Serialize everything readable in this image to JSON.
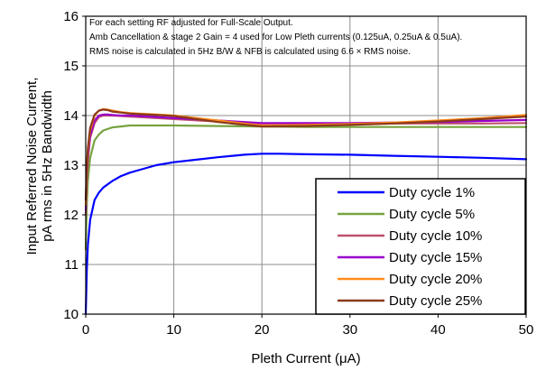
{
  "chart_data": {
    "type": "line",
    "xlabel": "Pleth Current (μA)",
    "ylabel": [
      "Input Referred Noise Current,",
      "pA rms in 5Hz Bandwidth"
    ],
    "xlim": [
      0,
      50
    ],
    "ylim": [
      10,
      16
    ],
    "xticks": [
      "0",
      "10",
      "20",
      "30",
      "40",
      "50"
    ],
    "yticks": [
      "10",
      "11",
      "12",
      "13",
      "14",
      "15",
      "16"
    ],
    "grid": "vertical and horizontal",
    "legend_position": "bottom-right",
    "annotations": [
      "For each setting RF adjusted for Full-Scale Output.",
      "Amb Cancellation & stage 2 Gain = 4 used for Low Pleth currents (0.125uA, 0.25uA & 0.5uA).",
      "RMS noise is calculated in 5Hz B/W & NFB is calculated using 6.6 × RMS noise."
    ],
    "series": [
      {
        "name": "Duty cycle 1%",
        "color": "#0000ff",
        "x": [
          0,
          0.125,
          0.25,
          0.5,
          1,
          1.5,
          2,
          3,
          4,
          5,
          6,
          8,
          10,
          12,
          15,
          18,
          20,
          22,
          25,
          30,
          35,
          40,
          45,
          50
        ],
        "y": [
          10.0,
          10.9,
          11.4,
          11.9,
          12.3,
          12.45,
          12.55,
          12.68,
          12.78,
          12.85,
          12.9,
          13.0,
          13.06,
          13.1,
          13.16,
          13.21,
          13.23,
          13.23,
          13.22,
          13.21,
          13.19,
          13.17,
          13.15,
          13.12
        ]
      },
      {
        "name": "Duty cycle 5%",
        "color": "#77a33f",
        "x": [
          0,
          0.125,
          0.25,
          0.5,
          1,
          1.5,
          2,
          3,
          4,
          5,
          6,
          8,
          10,
          15,
          20,
          25,
          30,
          35,
          40,
          45,
          50
        ],
        "y": [
          11.3,
          12.2,
          12.7,
          13.15,
          13.5,
          13.62,
          13.7,
          13.76,
          13.78,
          13.8,
          13.8,
          13.8,
          13.8,
          13.79,
          13.78,
          13.77,
          13.77,
          13.77,
          13.77,
          13.77,
          13.77
        ]
      },
      {
        "name": "Duty cycle 10%",
        "color": "#c0506e",
        "x": [
          0,
          0.125,
          0.25,
          0.5,
          1,
          1.5,
          2,
          2.5,
          3,
          4,
          5,
          6,
          8,
          10,
          15,
          20,
          25,
          30,
          35,
          40,
          45,
          50
        ],
        "y": [
          12.0,
          12.75,
          13.1,
          13.55,
          13.85,
          13.97,
          14.0,
          14.0,
          14.0,
          13.99,
          13.98,
          13.97,
          13.95,
          13.93,
          13.88,
          13.84,
          13.84,
          13.84,
          13.84,
          13.84,
          13.84,
          13.85
        ]
      },
      {
        "name": "Duty cycle 15%",
        "color": "#9900cc",
        "x": [
          0,
          0.125,
          0.25,
          0.5,
          1,
          1.5,
          2,
          2.5,
          3,
          4,
          5,
          6,
          8,
          10,
          15,
          20,
          25,
          30,
          35,
          40,
          45,
          50
        ],
        "y": [
          12.1,
          12.8,
          13.2,
          13.6,
          13.9,
          14.0,
          14.02,
          14.02,
          14.01,
          14.0,
          14.0,
          13.99,
          13.97,
          13.95,
          13.9,
          13.85,
          13.85,
          13.85,
          13.86,
          13.87,
          13.89,
          13.91
        ]
      },
      {
        "name": "Duty cycle 20%",
        "color": "#ff8c1a",
        "x": [
          0,
          0.125,
          0.25,
          0.5,
          1,
          1.5,
          2,
          2.5,
          3,
          4,
          5,
          6,
          8,
          10,
          15,
          20,
          25,
          30,
          35,
          40,
          45,
          50
        ],
        "y": [
          12.2,
          12.9,
          13.3,
          13.7,
          14.0,
          14.1,
          14.13,
          14.12,
          14.1,
          14.07,
          14.05,
          14.04,
          14.02,
          14.0,
          13.9,
          13.8,
          13.81,
          13.83,
          13.86,
          13.9,
          13.95,
          14.01
        ]
      },
      {
        "name": "Duty cycle 25%",
        "color": "#8b3a1a",
        "x": [
          0,
          0.125,
          0.25,
          0.5,
          1,
          1.5,
          2,
          2.5,
          3,
          4,
          5,
          6,
          8,
          10,
          15,
          20,
          25,
          30,
          35,
          40,
          45,
          50
        ],
        "y": [
          12.3,
          12.95,
          13.35,
          13.75,
          14.02,
          14.1,
          14.12,
          14.11,
          14.08,
          14.06,
          14.04,
          14.03,
          14.01,
          13.99,
          13.87,
          13.78,
          13.79,
          13.81,
          13.84,
          13.88,
          13.93,
          13.98
        ]
      }
    ]
  }
}
